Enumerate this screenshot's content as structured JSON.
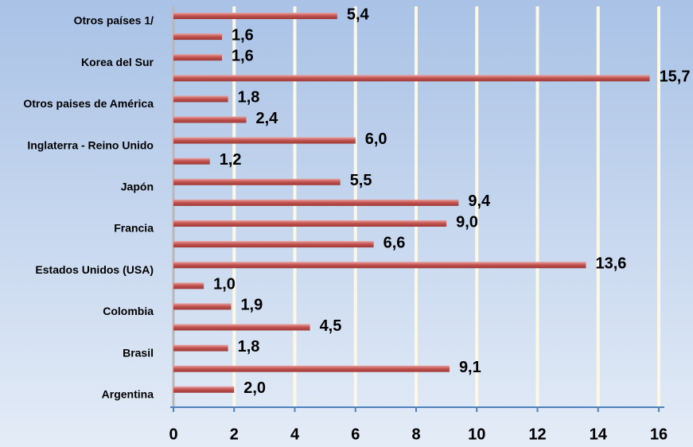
{
  "chart_data": {
    "type": "barh",
    "categories": [
      "Otros países  1/",
      null,
      "Korea del Sur",
      null,
      "Otros paises  de América",
      null,
      "Inglaterra -  Reino Unido",
      null,
      "Japón",
      null,
      "Francia",
      null,
      "Estados  Unidos (USA)",
      null,
      "Colombia",
      null,
      "Brasil",
      null,
      "Argentina"
    ],
    "values": [
      5.4,
      1.6,
      1.6,
      15.7,
      1.8,
      2.4,
      6.0,
      1.2,
      5.5,
      9.4,
      9.0,
      6.6,
      13.6,
      1.0,
      1.9,
      4.5,
      1.8,
      9.1,
      2.0
    ],
    "value_labels": [
      "5,4",
      "1,6",
      "1,6",
      "15,7",
      "1,8",
      "2,4",
      "6,0",
      "1,2",
      "5,5",
      "9,4",
      "9,0",
      "6,6",
      "13,6",
      "1,0",
      "1,9",
      "4,5",
      "1,8",
      "9,1",
      "2,0"
    ],
    "color": "#c0504d",
    "xlim": [
      0,
      16
    ],
    "xticks": [
      0,
      2,
      4,
      6,
      8,
      10,
      12,
      14,
      16
    ],
    "grid": true
  }
}
